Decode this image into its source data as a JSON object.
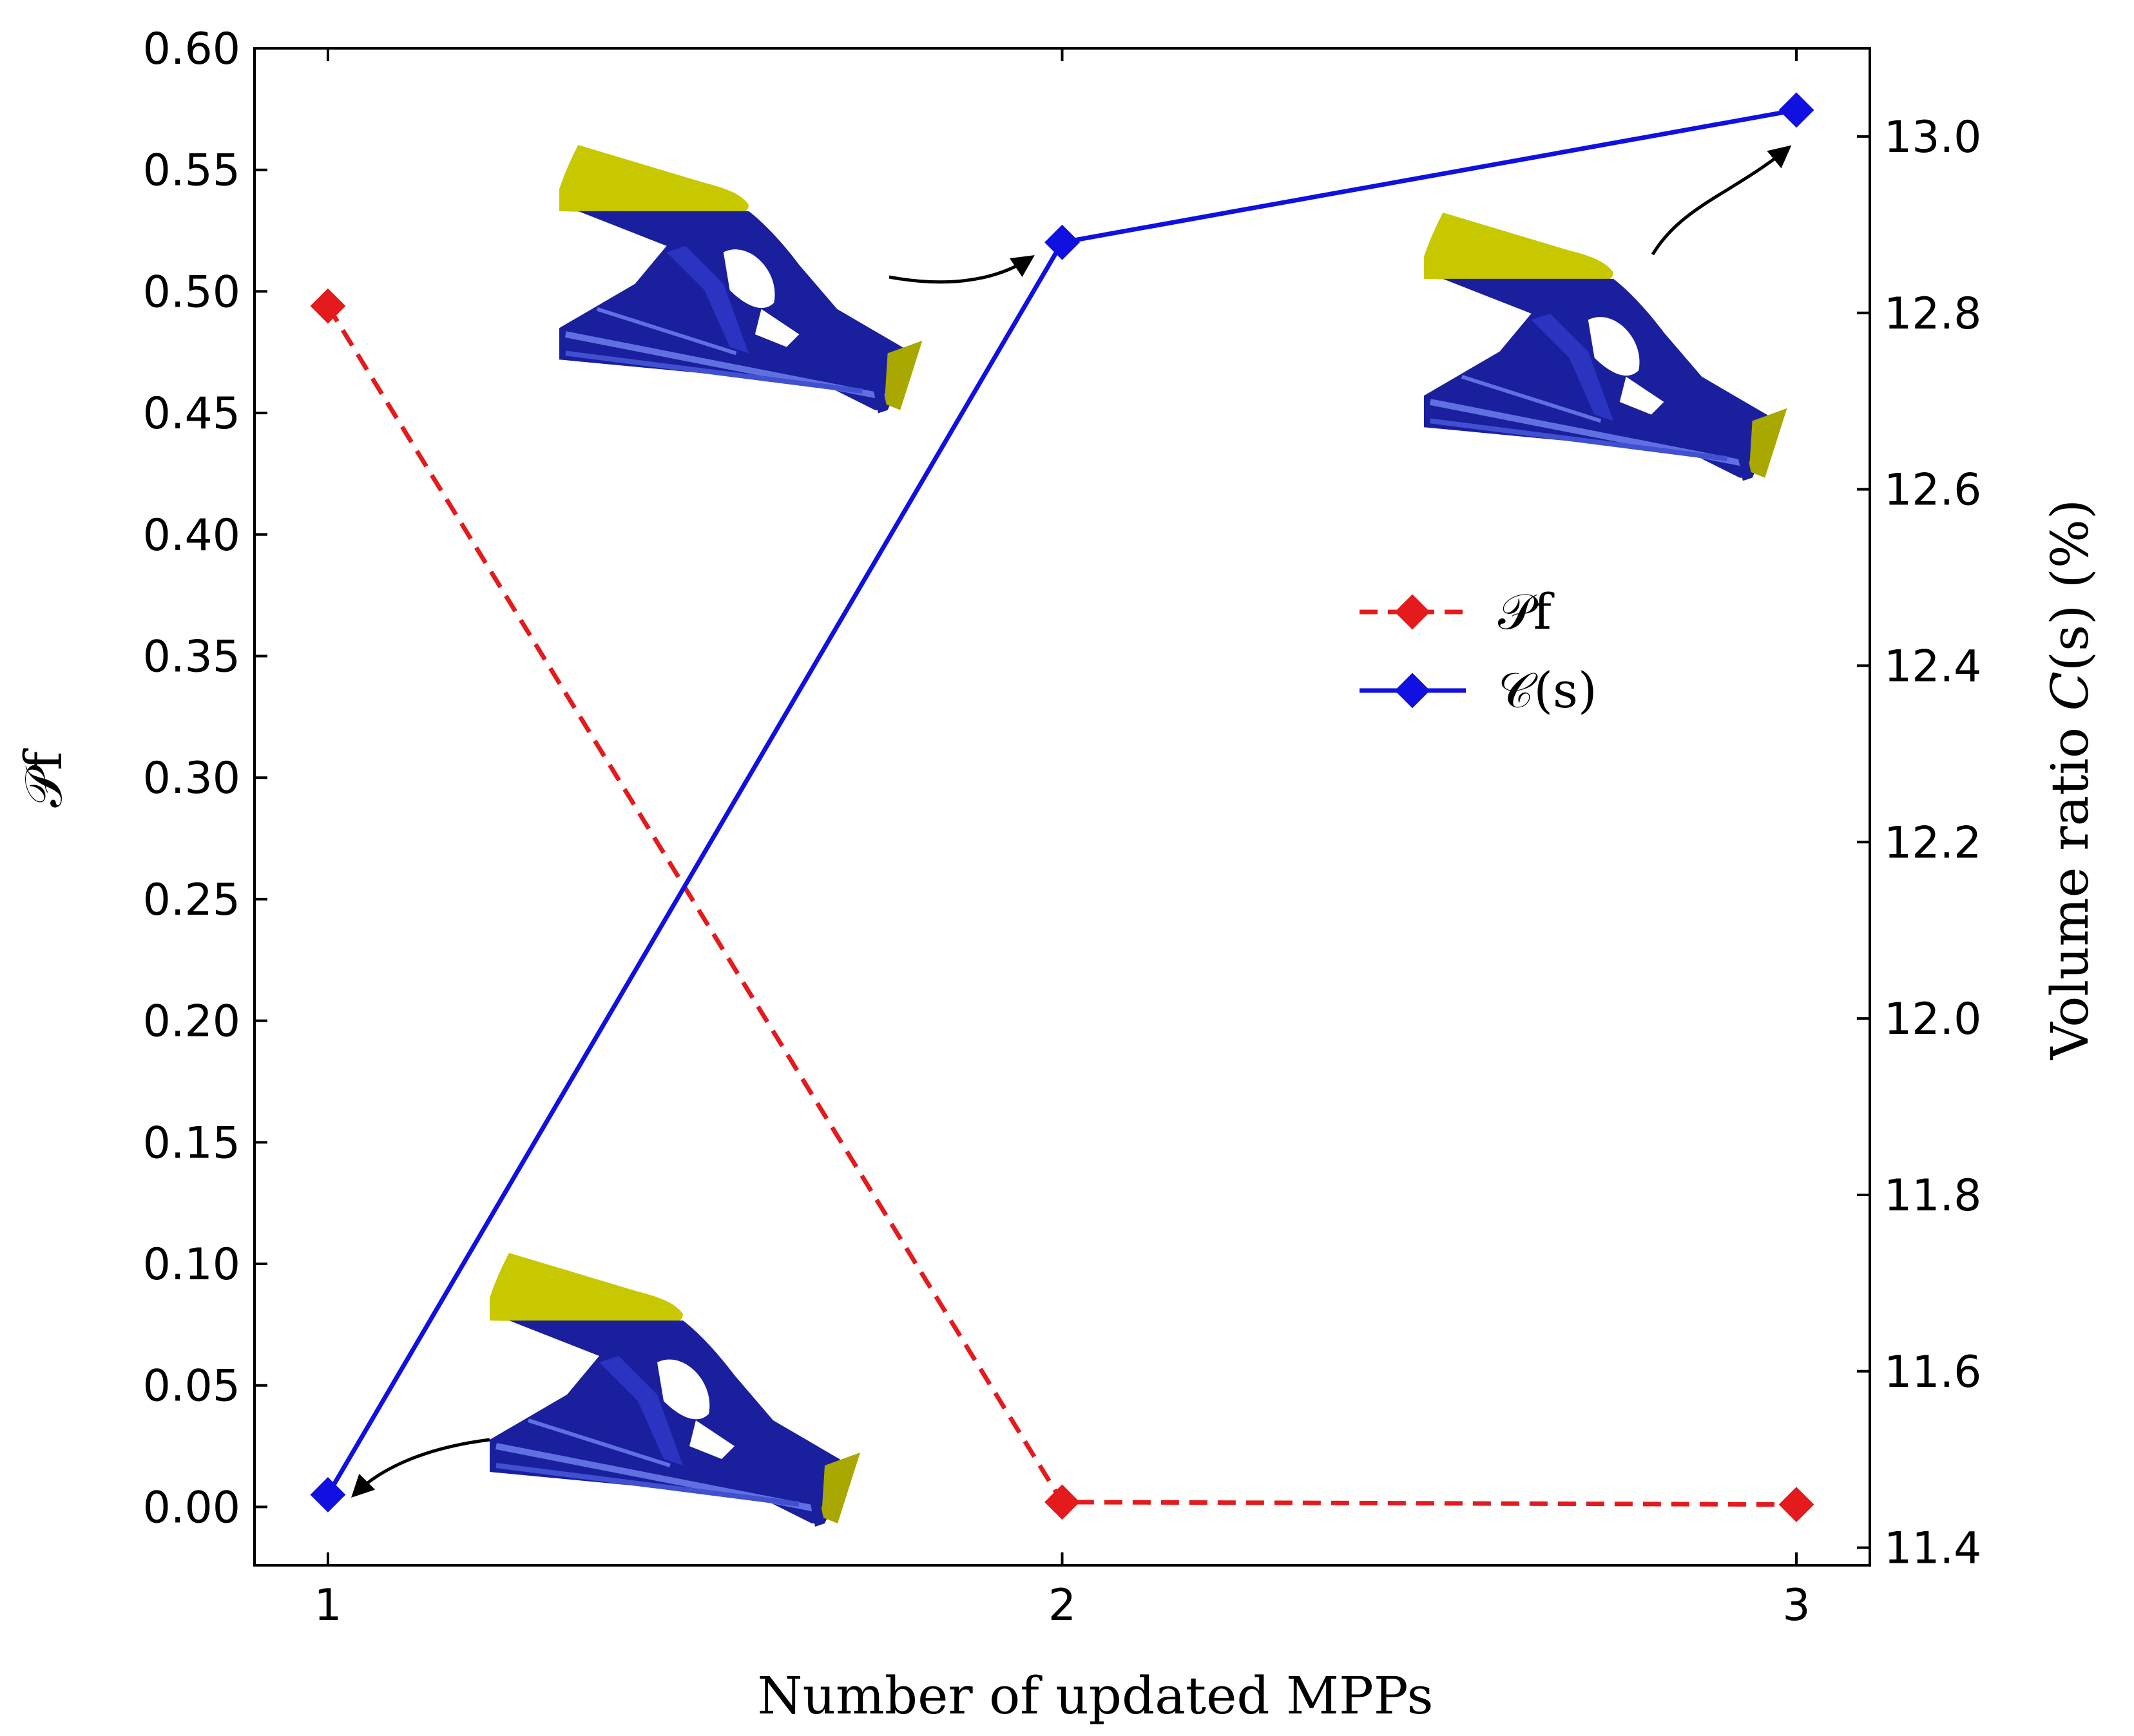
{
  "chart_data": {
    "type": "line",
    "x": [
      1,
      2,
      3
    ],
    "xlabel": "Number of updated MPPs",
    "ylabel_left": "𝒫f",
    "ylabel_right": "Volume ratio 𝐶(s) (%)",
    "xlim": [
      0.9,
      3.1
    ],
    "ylim_left": [
      -0.024,
      0.6
    ],
    "ylim_right": [
      11.38,
      13.1
    ],
    "x_ticks": [
      "1",
      "2",
      "3"
    ],
    "y_ticks_left": [
      "0.00",
      "0.05",
      "0.10",
      "0.15",
      "0.20",
      "0.25",
      "0.30",
      "0.35",
      "0.40",
      "0.45",
      "0.50",
      "0.55",
      "0.60"
    ],
    "y_ticks_right": [
      "11.4",
      "11.6",
      "11.8",
      "12.0",
      "12.2",
      "12.4",
      "12.6",
      "12.8",
      "13.0"
    ],
    "grid": false,
    "legend_position": "center-right",
    "series": [
      {
        "name": "𝒫f",
        "axis": "left",
        "values": [
          0.494,
          0.002,
          0.001
        ],
        "color": "#e41a1c",
        "line_style": "dashed",
        "marker": "diamond"
      },
      {
        "name": "𝒞(s)",
        "axis": "right",
        "values": [
          11.46,
          12.88,
          13.03
        ],
        "color": "#1010e0",
        "line_style": "solid",
        "marker": "diamond"
      }
    ],
    "colors": {
      "structure_body": "#1a1f9e",
      "structure_highlight": "#6070e0",
      "support_plate": "#c8c800",
      "axis": "#000000"
    }
  }
}
